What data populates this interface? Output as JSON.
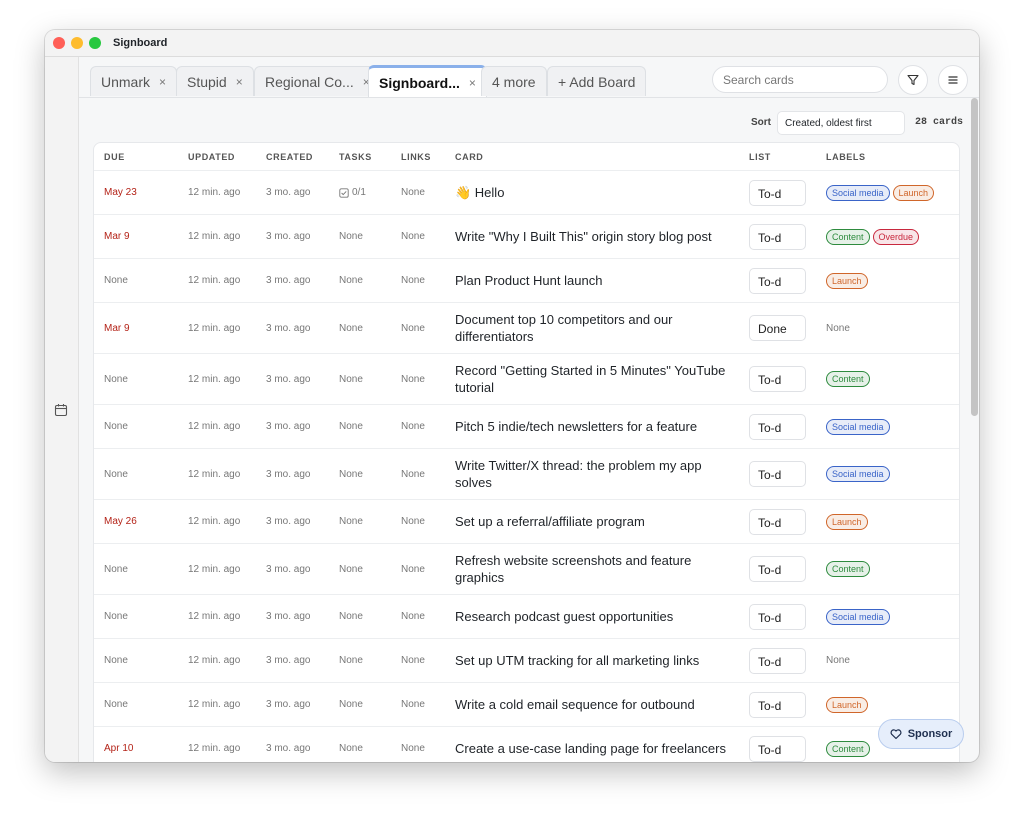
{
  "window": {
    "title": "Signboard"
  },
  "tabs": [
    {
      "label": "Unmark",
      "close": "×"
    },
    {
      "label": "Stupid",
      "close": "×"
    },
    {
      "label": "Regional Co...",
      "close": "×"
    },
    {
      "label": "Signboard...",
      "close": "×",
      "active": true
    },
    {
      "label": "4 more"
    },
    {
      "label": "+ Add Board"
    }
  ],
  "search_placeholder": "Search cards",
  "sort": {
    "label": "Sort",
    "value": "Created, oldest first",
    "count": "28 cards"
  },
  "table": {
    "headers": [
      "DUE",
      "UPDATED",
      "CREATED",
      "TASKS",
      "LINKS",
      "CARD",
      "LIST",
      "LABELS"
    ],
    "rows": [
      [
        "May 23",
        "12 min. ago",
        "3 mo. ago",
        "0/1",
        "None",
        "👋 Hello",
        "To-d",
        [
          {
            "text": "Social media",
            "color": "#3a64c8"
          },
          {
            "text": "Launch",
            "color": "#d0662a"
          }
        ]
      ],
      [
        "Mar 9",
        "12 min. ago",
        "3 mo. ago",
        "None",
        "None",
        "Write \"Why I Built This\" origin story blog post",
        "To-d",
        [
          {
            "text": "Content",
            "color": "#2e8b3e"
          },
          {
            "text": "Overdue",
            "color": "#c8283e"
          }
        ]
      ],
      [
        "None",
        "12 min. ago",
        "3 mo. ago",
        "None",
        "None",
        "Plan Product Hunt launch",
        "To-d",
        [
          {
            "text": "Launch",
            "color": "#d0662a"
          }
        ]
      ],
      [
        "Mar 9",
        "12 min. ago",
        "3 mo. ago",
        "None",
        "None",
        "Document top 10 competitors and our differentiators",
        "Done",
        "None"
      ],
      [
        "None",
        "12 min. ago",
        "3 mo. ago",
        "None",
        "None",
        "Record \"Getting Started in 5 Minutes\" YouTube tutorial",
        "To-d",
        [
          {
            "text": "Content",
            "color": "#2e8b3e"
          }
        ]
      ],
      [
        "None",
        "12 min. ago",
        "3 mo. ago",
        "None",
        "None",
        "Pitch 5 indie/tech newsletters for a feature",
        "To-d",
        [
          {
            "text": "Social media",
            "color": "#3a64c8"
          }
        ]
      ],
      [
        "None",
        "12 min. ago",
        "3 mo. ago",
        "None",
        "None",
        "Write Twitter/X thread: the problem my app solves",
        "To-d",
        [
          {
            "text": "Social media",
            "color": "#3a64c8"
          }
        ]
      ],
      [
        "May 26",
        "12 min. ago",
        "3 mo. ago",
        "None",
        "None",
        "Set up a referral/affiliate program",
        "To-d",
        [
          {
            "text": "Launch",
            "color": "#d0662a"
          }
        ]
      ],
      [
        "None",
        "12 min. ago",
        "3 mo. ago",
        "None",
        "None",
        "Refresh website screenshots and feature graphics",
        "To-d",
        [
          {
            "text": "Content",
            "color": "#2e8b3e"
          }
        ]
      ],
      [
        "None",
        "12 min. ago",
        "3 mo. ago",
        "None",
        "None",
        "Research podcast guest opportunities",
        "To-d",
        [
          {
            "text": "Social media",
            "color": "#3a64c8"
          }
        ]
      ],
      [
        "None",
        "12 min. ago",
        "3 mo. ago",
        "None",
        "None",
        "Set up UTM tracking for all marketing links",
        "To-d",
        "None"
      ],
      [
        "None",
        "12 min. ago",
        "3 mo. ago",
        "None",
        "None",
        "Write a cold email sequence for outbound",
        "To-d",
        [
          {
            "text": "Launch",
            "color": "#d0662a"
          }
        ]
      ],
      [
        "Apr 10",
        "12 min. ago",
        "3 mo. ago",
        "None",
        "None",
        "Create a use-case landing page for freelancers",
        "To-d",
        [
          {
            "text": "Content",
            "color": "#2e8b3e"
          }
        ]
      ]
    ]
  },
  "sponsor": "Sponsor"
}
